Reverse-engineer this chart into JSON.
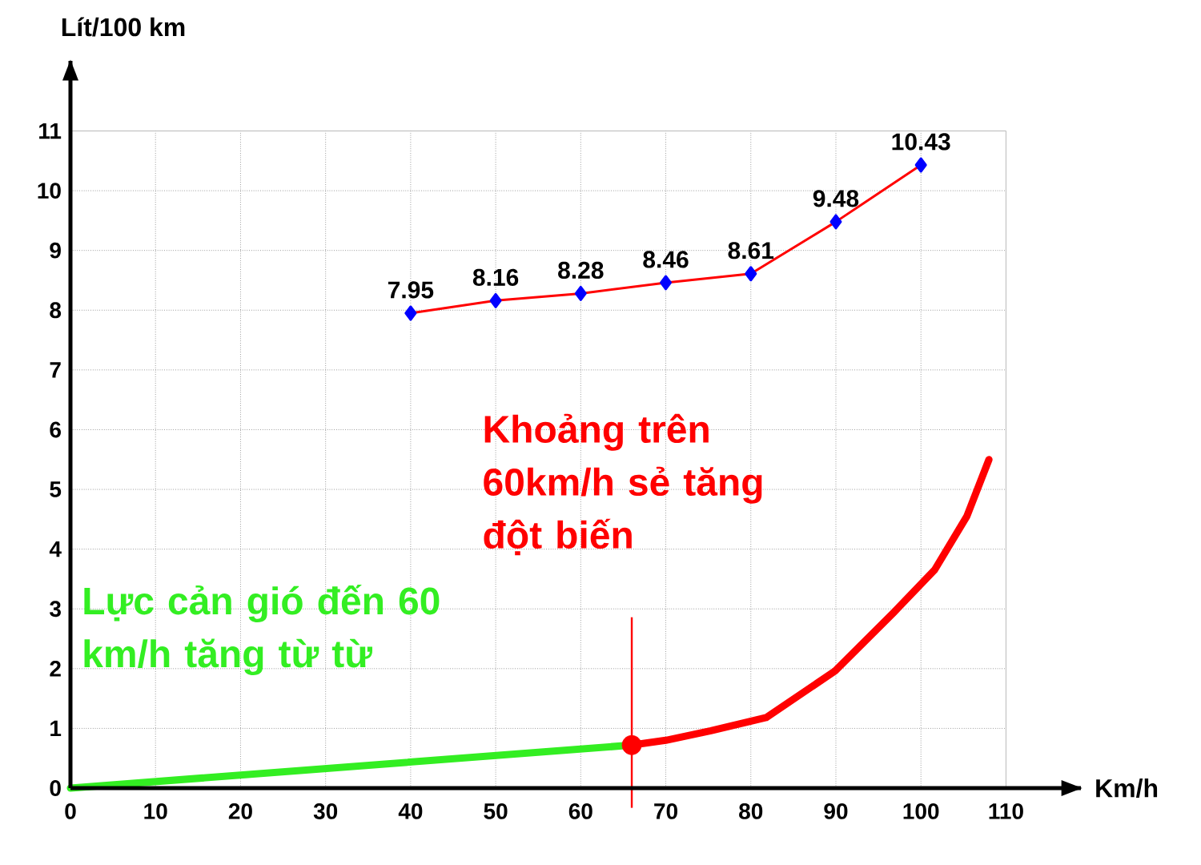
{
  "chart_data": {
    "type": "line",
    "xlabel": "Km/h",
    "ylabel": "Lít/100 km",
    "xlim": [
      0,
      119
    ],
    "ylim": [
      0,
      12.2
    ],
    "xticks": [
      0,
      10,
      20,
      30,
      40,
      50,
      60,
      70,
      80,
      90,
      100,
      110
    ],
    "yticks": [
      0,
      1,
      2,
      3,
      4,
      5,
      6,
      7,
      8,
      9,
      10,
      11
    ],
    "grid": true,
    "annotations": [
      "Khoảng trên 60km/h sẻ tăng đột biến",
      "Lực cản gió đến 60 km/h tăng từ từ"
    ],
    "ref_lines": [
      {
        "axis": "x",
        "value": 66,
        "color": "#ff0000"
      }
    ],
    "series": [
      {
        "x": [
          40,
          50,
          60,
          70,
          80,
          90,
          100
        ],
        "values": [
          7.95,
          8.16,
          8.28,
          8.46,
          8.61,
          9.48,
          10.43
        ],
        "color": "#ff0000",
        "marker": "diamond",
        "value_labels": [
          "7.95",
          "8.16",
          "8.28",
          "8.46",
          "8.61",
          "9.48",
          "10.43"
        ]
      },
      {
        "x": [
          0,
          66
        ],
        "values": [
          0,
          0.72
        ],
        "color": "#33ee22",
        "marker": "none"
      },
      {
        "x": [
          66,
          70,
          75.3,
          81.8,
          89.9,
          96.8,
          101.6,
          105.4,
          108
        ],
        "values": [
          0.72,
          0.8,
          0.96,
          1.18,
          1.96,
          2.94,
          3.65,
          4.55,
          5.5
        ],
        "color": "#ff0000",
        "marker": "none"
      },
      {
        "type": "scatter",
        "x": [
          66
        ],
        "values": [
          0.72
        ],
        "color": "#ff0000",
        "marker": "circle"
      }
    ]
  }
}
